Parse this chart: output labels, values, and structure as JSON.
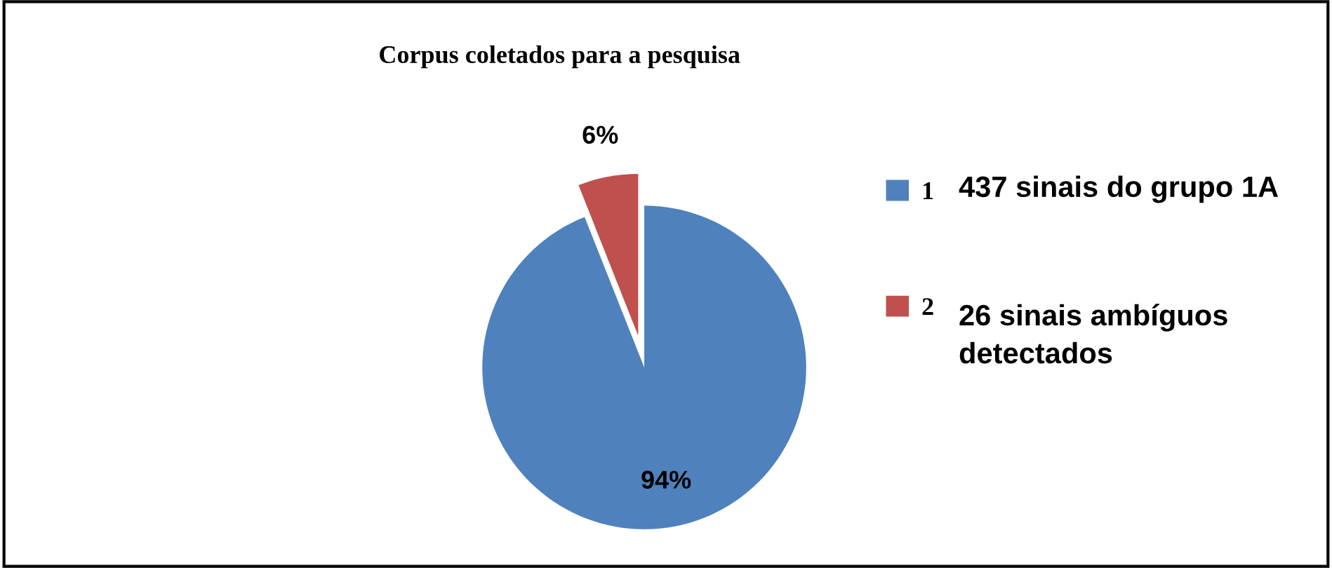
{
  "chart_data": {
    "type": "pie",
    "title": "Corpus coletados para a pesquisa",
    "categories": [
      "1",
      "2"
    ],
    "values": [
      94,
      6
    ],
    "colors": [
      "#4f81bd",
      "#c0504d"
    ],
    "value_labels": [
      "94%",
      "6%"
    ],
    "legend": "right",
    "annotations": [
      "437 sinais do grupo 1A",
      "26 sinais ambíguos detectados"
    ]
  }
}
